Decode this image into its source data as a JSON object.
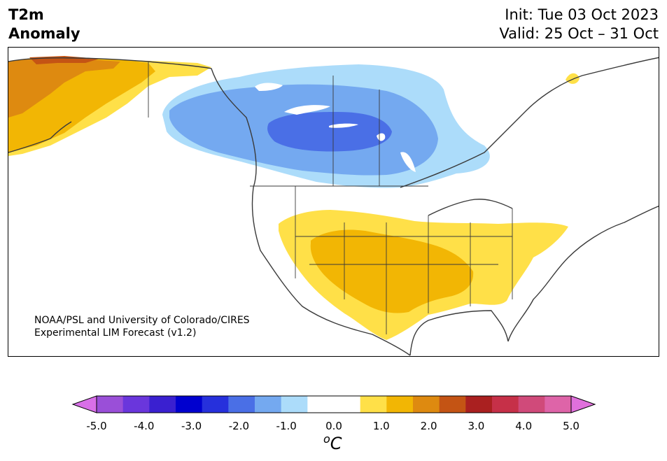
{
  "header": {
    "title_line1": "T2m",
    "title_line2": "Anomaly",
    "init": "Init: Tue 03 Oct 2023",
    "valid": "Valid: 25 Oct – 31 Oct"
  },
  "credit": {
    "line1": "NOAA/PSL and University of Colorado/CIRES",
    "line2": "Experimental LIM Forecast (v1.2)"
  },
  "colorbar": {
    "unit_base": "C",
    "unit_sup": "o",
    "ticks": [
      "-5.0",
      "-4.0",
      "-3.0",
      "-2.0",
      "-1.0",
      "0.0",
      "1.0",
      "2.0",
      "3.0",
      "4.0",
      "5.0"
    ],
    "colors": [
      "#9a4fd8",
      "#6a36dc",
      "#3a20d0",
      "#0000cf",
      "#2630dc",
      "#4a6fe6",
      "#74a9f0",
      "#acdcfa",
      "#ffffff",
      "#ffffff",
      "#ffe048",
      "#f2b604",
      "#de8a10",
      "#c45414",
      "#aa2020",
      "#c63048",
      "#d04a7a",
      "#de64a8"
    ],
    "extend_low_color": "#d86fe8",
    "extend_high_color": "#e070dc"
  },
  "map": {
    "colors": {
      "cold_1": "#acdcfa",
      "cold_2": "#74a9f0",
      "cold_3": "#4a6fe6",
      "warm_1": "#ffe048",
      "warm_2": "#f2b604",
      "warm_3": "#de8a10",
      "warm_4": "#c45414",
      "coast": "#3a3a3a"
    }
  }
}
